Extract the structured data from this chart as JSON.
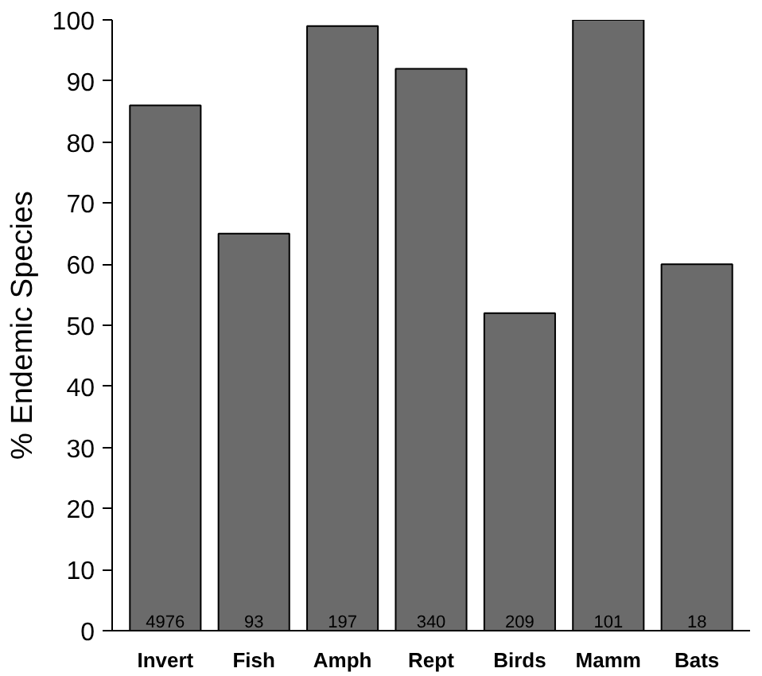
{
  "chart_data": {
    "type": "bar",
    "ylabel": "% Endemic Species",
    "categories": [
      "Invert",
      "Fish",
      "Amph",
      "Rept",
      "Birds",
      "Mamm",
      "Bats"
    ],
    "values": [
      86,
      65,
      99,
      92,
      52,
      100,
      60
    ],
    "annotations": [
      {
        "text": "4976",
        "x": "Invert",
        "y": 0
      },
      {
        "text": "93",
        "x": "Fish",
        "y": 0
      },
      {
        "text": "197",
        "x": "Amph",
        "y": 0
      },
      {
        "text": "340",
        "x": "Rept",
        "y": 0
      },
      {
        "text": "209",
        "x": "Birds",
        "y": 0
      },
      {
        "text": "101",
        "x": "Mamm",
        "y": 0
      },
      {
        "text": "18",
        "x": "Bats",
        "y": 0
      }
    ],
    "color": "#6b6b6b",
    "ylim": [
      0,
      100
    ],
    "yticks": [
      0,
      10,
      20,
      30,
      40,
      50,
      60,
      70,
      80,
      90,
      100
    ],
    "grid": false
  }
}
